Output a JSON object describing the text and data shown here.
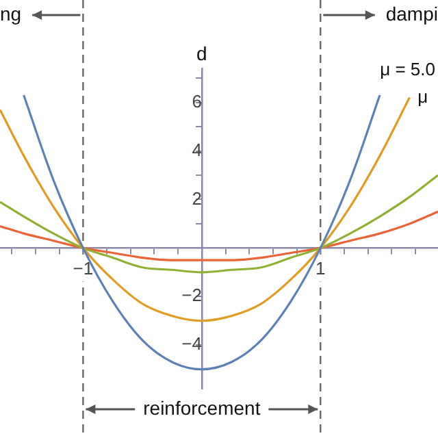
{
  "chart_data": {
    "type": "line",
    "ylabel": "d",
    "xlim": [
      -1.7,
      1.99
    ],
    "ylim": [
      -5.8,
      7.4
    ],
    "xticks": [
      {
        "value": -1.6,
        "label": null
      },
      {
        "value": -1.4,
        "label": null
      },
      {
        "value": -1.2,
        "label": null
      },
      -1,
      {
        "value": -0.8,
        "label": null
      },
      {
        "value": -0.6,
        "label": null
      },
      {
        "value": -0.4,
        "label": null
      },
      {
        "value": -0.2,
        "label": null
      },
      {
        "value": 0.2,
        "label": null
      },
      {
        "value": 0.4,
        "label": null
      },
      {
        "value": 0.6,
        "label": null
      },
      {
        "value": 0.8,
        "label": null
      },
      1,
      {
        "value": 1.2,
        "label": null
      },
      {
        "value": 1.4,
        "label": null
      },
      {
        "value": 1.6,
        "label": null
      },
      {
        "value": 1.8,
        "label": null
      }
    ],
    "yticks": [
      {
        "value": -5,
        "label": null
      },
      -4,
      {
        "value": -3,
        "label": null
      },
      -2,
      {
        "value": -1,
        "label": null
      },
      {
        "value": 1,
        "label": null
      },
      2,
      {
        "value": 3,
        "label": null
      },
      4,
      {
        "value": 5,
        "label": null
      },
      6,
      {
        "value": 7,
        "label": null
      }
    ],
    "grid": false,
    "legend": false,
    "marker": "none",
    "line_style": "solid",
    "series": [
      {
        "name": "μ = 5.0",
        "color": "#5e81b5",
        "x": [
          -1.5,
          -1.25,
          -1,
          -0.75,
          -0.5,
          -0.25,
          0,
          0.25,
          0.5,
          0.75,
          1,
          1.25,
          1.5
        ],
        "values": [
          6.3,
          2.8,
          0,
          -2.2,
          -3.8,
          -4.7,
          -5,
          -4.7,
          -3.8,
          -2.2,
          0,
          2.8,
          6.3
        ]
      },
      {
        "name": "μ",
        "color": "#e19c24",
        "x": [
          -1.7,
          -1.5,
          -1.25,
          -1,
          -0.75,
          -0.5,
          -0.25,
          0,
          0.25,
          0.5,
          0.75,
          1,
          1.25,
          1.5,
          1.75
        ],
        "values": [
          5.7,
          3.8,
          1.7,
          0,
          -1.3,
          -2.3,
          -2.8,
          -3,
          -2.8,
          -2.3,
          -1.3,
          0,
          1.7,
          3.8,
          6.2
        ]
      },
      {
        "color": "#8fb032",
        "x": [
          -1.7,
          -1.5,
          -1.25,
          -1,
          -0.75,
          -0.5,
          -0.25,
          0,
          0.25,
          0.5,
          0.75,
          1,
          1.25,
          1.5,
          1.75,
          1.99
        ],
        "values": [
          1.9,
          1.3,
          0.6,
          0,
          -0.4,
          -0.8,
          -0.9,
          -1,
          -0.9,
          -0.8,
          -0.4,
          0,
          0.6,
          1.3,
          2.1,
          3.0
        ]
      },
      {
        "color": "#eb6235",
        "x": [
          -1.7,
          -1.5,
          -1.25,
          -1,
          -0.75,
          -0.5,
          -0.25,
          0,
          0.25,
          0.5,
          0.75,
          1,
          1.25,
          1.5,
          1.75,
          1.99
        ],
        "values": [
          0.9,
          0.6,
          0.3,
          0,
          -0.2,
          -0.4,
          -0.5,
          -0.5,
          -0.5,
          -0.4,
          -0.2,
          0,
          0.3,
          0.6,
          1.0,
          1.5
        ]
      }
    ],
    "ref_lines": [
      {
        "axis": "x",
        "value": -1,
        "color": "#666666",
        "line_style": "dashed"
      },
      {
        "axis": "x",
        "value": 1,
        "color": "#666666",
        "line_style": "dashed"
      }
    ],
    "annotations": [
      "ng",
      "dampi",
      "reinforcement"
    ]
  }
}
